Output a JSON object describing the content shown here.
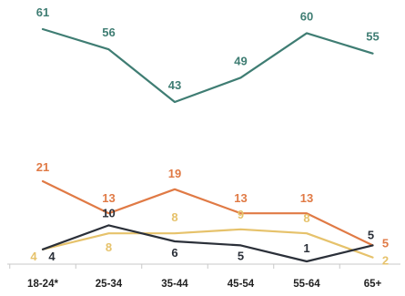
{
  "chart_data": {
    "type": "line",
    "categories": [
      "18-24*",
      "25-34",
      "35-44",
      "45-54",
      "55-64",
      "65+"
    ],
    "series": [
      {
        "values": [
          61,
          56,
          43,
          49,
          60,
          55
        ],
        "color": "#3f7d73"
      },
      {
        "values": [
          21,
          13,
          19,
          13,
          13,
          5
        ],
        "color": "#e07a45"
      },
      {
        "values": [
          4,
          8,
          8,
          9,
          8,
          2
        ],
        "color": "#e6c26b"
      },
      {
        "values": [
          4,
          10,
          6,
          5,
          1,
          5
        ],
        "color": "#2b3039"
      }
    ],
    "grid": false,
    "legend": "none"
  }
}
